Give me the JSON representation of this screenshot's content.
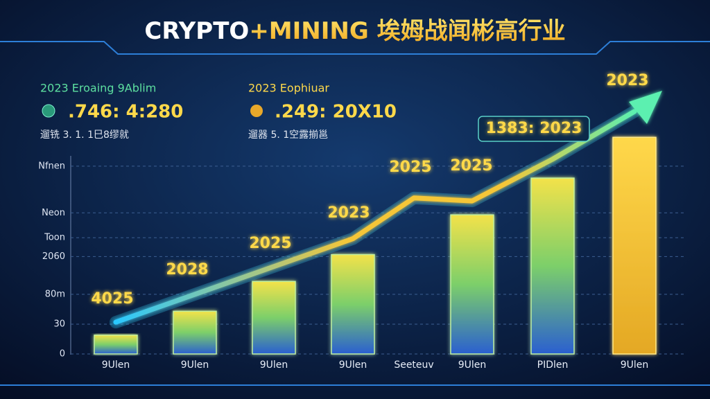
{
  "chart_data": {
    "type": "bar",
    "title": [
      "CRYPTO",
      "+MINING 埃姆战闻彬高行业"
    ],
    "panels": [
      {
        "heading": "2023 Eroaing 9Ablim",
        "value": ".746: 4:280",
        "note": "遛铣  3. 1. 1巳8缪就"
      },
      {
        "heading": "2023 Eophiuar",
        "value": ".249: 20X10",
        "note": "遛器  5. 1空露揃邕"
      }
    ],
    "categories": [
      "9Ulen",
      "9Ulen",
      "9Ulen",
      "9Ulen",
      "Seeteuv",
      "9Ulen",
      "PIDlen",
      "9Ulen"
    ],
    "series": [
      {
        "name": "bars",
        "color": "#f5d142",
        "values": [
          19,
          43,
          73,
          100,
          null,
          140,
          177,
          218
        ]
      },
      {
        "name": "trend",
        "color": "#36d8ff",
        "values": [
          32,
          60,
          88,
          116,
          157,
          154,
          196,
          244
        ]
      }
    ],
    "annotations": [
      "4025",
      "2028",
      "2025",
      "2023",
      "2025",
      "2025",
      "1383: 2023",
      "2023"
    ],
    "ylim": [
      0,
      260
    ],
    "yticks": [
      0,
      30,
      {
        "value": 60,
        "label": "80m"
      },
      {
        "value": 98,
        "label": "2060"
      },
      {
        "value": 117,
        "label": "Toon"
      },
      {
        "value": 142,
        "label": "Neon"
      },
      {
        "value": 189,
        "label": "Nfnen"
      }
    ],
    "grid": true
  }
}
